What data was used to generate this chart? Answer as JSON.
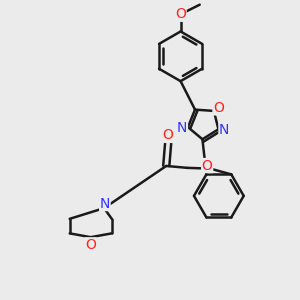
{
  "bg_color": "#ebebeb",
  "bond_color": "#1a1a1a",
  "bond_width": 1.8,
  "N_color": "#3333ff",
  "O_color": "#ff2222",
  "font_size": 10,
  "fig_width": 3.0,
  "fig_height": 3.0,
  "dpi": 100,
  "xlim": [
    -2.8,
    3.2
  ],
  "ylim": [
    -3.5,
    4.2
  ]
}
